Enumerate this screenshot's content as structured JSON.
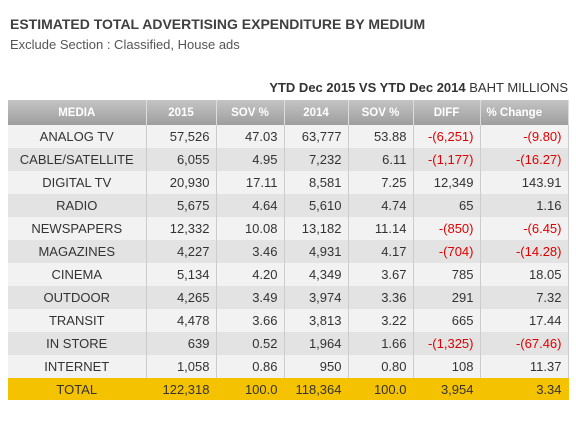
{
  "header": {
    "title": "ESTIMATED TOTAL ADVERTISING EXPENDITURE BY MEDIUM",
    "subtitle": "Exclude Section : Classified, House ads"
  },
  "caption": {
    "period": "YTD Dec 2015 VS YTD Dec 2014",
    "unit": "BAHT MILLIONS"
  },
  "table": {
    "columns": [
      "MEDIA",
      "2015",
      "SOV %",
      "2014",
      "SOV %",
      "DIFF",
      "% Change"
    ],
    "rows": [
      [
        "ANALOG  TV",
        "57,526",
        "47.03",
        "63,777",
        "53.88",
        "-(6,251)",
        "-(9.80)"
      ],
      [
        "CABLE/SATELLITE",
        "6,055",
        "4.95",
        "7,232",
        "6.11",
        "-(1,177)",
        "-(16.27)"
      ],
      [
        "DIGITAL TV",
        "20,930",
        "17.11",
        "8,581",
        "7.25",
        "12,349",
        "143.91"
      ],
      [
        "RADIO",
        "5,675",
        "4.64",
        "5,610",
        "4.74",
        "65",
        "1.16"
      ],
      [
        "NEWSPAPERS",
        "12,332",
        "10.08",
        "13,182",
        "11.14",
        "-(850)",
        "-(6.45)"
      ],
      [
        "MAGAZINES",
        "4,227",
        "3.46",
        "4,931",
        "4.17",
        "-(704)",
        "-(14.28)"
      ],
      [
        "CINEMA",
        "5,134",
        "4.20",
        "4,349",
        "3.67",
        "785",
        "18.05"
      ],
      [
        "OUTDOOR",
        "4,265",
        "3.49",
        "3,974",
        "3.36",
        "291",
        "7.32"
      ],
      [
        "TRANSIT",
        "4,478",
        "3.66",
        "3,813",
        "3.22",
        "665",
        "17.44"
      ],
      [
        "IN STORE",
        "639",
        "0.52",
        "1,964",
        "1.66",
        "-(1,325)",
        "-(67.46)"
      ],
      [
        "INTERNET",
        "1,058",
        "0.86",
        "950",
        "0.80",
        "108",
        "11.37"
      ]
    ],
    "total": [
      "TOTAL",
      "122,318",
      "100.0",
      "118,364",
      "100.0",
      "3,954",
      "3.34"
    ]
  }
}
